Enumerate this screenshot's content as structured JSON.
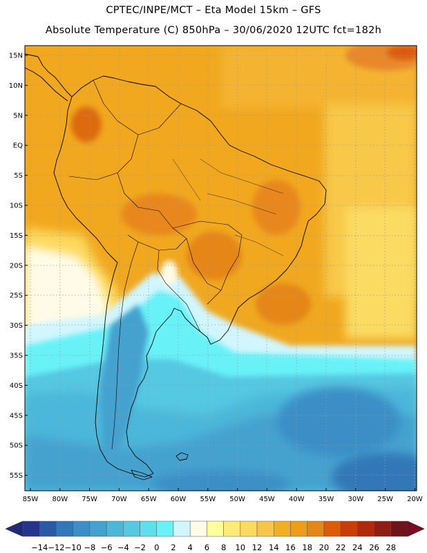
{
  "header": {
    "title_line1": "CPTEC/INPE/MCT –  Eta Model 15km – GFS",
    "title_line2": "Absolute Temperature (C) 850hPa – 30/06/2020 12UTC fct=182h"
  },
  "map": {
    "lat_labels": [
      "15N",
      "10N",
      "5N",
      "EQ",
      "5S",
      "10S",
      "15S",
      "20S",
      "25S",
      "30S",
      "35S",
      "40S",
      "45S",
      "50S",
      "55S"
    ],
    "lon_labels": [
      "85W",
      "80W",
      "75W",
      "70W",
      "65W",
      "60W",
      "55W",
      "50W",
      "45W",
      "40W",
      "35W",
      "30W",
      "25W",
      "20W"
    ]
  },
  "colorbar": {
    "labels": [
      "-14",
      "-12",
      "-10",
      "-8",
      "-6",
      "-4",
      "-2",
      "0",
      "2",
      "4",
      "6",
      "8",
      "10",
      "12",
      "14",
      "16",
      "18",
      "20",
      "22",
      "24",
      "26",
      "28"
    ],
    "colors": [
      "#26348c",
      "#2a5aa6",
      "#3278b8",
      "#3b8fc6",
      "#44a2cf",
      "#4cb7da",
      "#55c8e2",
      "#5edfec",
      "#68f2f8",
      "#d2f6fd",
      "#fffbe6",
      "#ffff9e",
      "#ffec78",
      "#fcd95f",
      "#f7c54a",
      "#f1b022",
      "#ee9d18",
      "#e58616",
      "#dc5a08",
      "#c93e08",
      "#ae2a0a",
      "#8e1e12",
      "#6f1418"
    ],
    "under_color": "#1e2a78",
    "over_color": "#7a0b20"
  }
}
